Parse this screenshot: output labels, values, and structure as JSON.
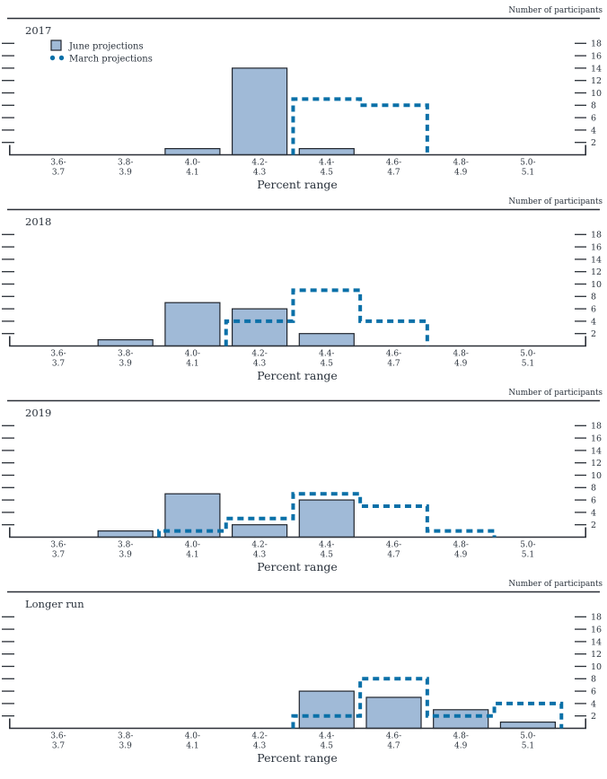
{
  "figure": {
    "y_axis_label": "Number of participants",
    "x_axis_label": "Percent range"
  },
  "legend": {
    "june": "June projections",
    "march": "March projections"
  },
  "colors": {
    "bar_fill": "#a0bad7",
    "bar_stroke": "#21262e",
    "dash": "#0a70a8",
    "text": "#2a323c",
    "axis": "#2a2f37"
  },
  "chart_data": [
    {
      "type": "bar",
      "title": "2017",
      "xlabel": "Percent range",
      "ylabel": "Number of participants",
      "categories": [
        "3.6-3.7",
        "3.8-3.9",
        "4.0-4.1",
        "4.2-4.3",
        "4.4-4.5",
        "4.6-4.7",
        "4.8-4.9",
        "5.0-5.1"
      ],
      "yticks": [
        2,
        4,
        6,
        8,
        10,
        12,
        14,
        16,
        18
      ],
      "ylim": [
        0,
        19.5
      ],
      "grid": false,
      "legend_position": "top-left",
      "series": [
        {
          "name": "June projections",
          "style": "bar",
          "values": [
            0,
            0,
            1,
            14,
            1,
            0,
            0,
            0
          ]
        },
        {
          "name": "March projections",
          "style": "dashed-step",
          "values": [
            0,
            0,
            0,
            0,
            9,
            8,
            0,
            0
          ]
        }
      ]
    },
    {
      "type": "bar",
      "title": "2018",
      "xlabel": "Percent range",
      "ylabel": "Number of participants",
      "categories": [
        "3.6-3.7",
        "3.8-3.9",
        "4.0-4.1",
        "4.2-4.3",
        "4.4-4.5",
        "4.6-4.7",
        "4.8-4.9",
        "5.0-5.1"
      ],
      "yticks": [
        2,
        4,
        6,
        8,
        10,
        12,
        14,
        16,
        18
      ],
      "ylim": [
        0,
        19.5
      ],
      "grid": false,
      "series": [
        {
          "name": "June projections",
          "style": "bar",
          "values": [
            0,
            1,
            7,
            6,
            2,
            0,
            0,
            0
          ]
        },
        {
          "name": "March projections",
          "style": "dashed-step",
          "values": [
            0,
            0,
            0,
            4,
            9,
            4,
            0,
            0
          ]
        }
      ]
    },
    {
      "type": "bar",
      "title": "2019",
      "xlabel": "Percent range",
      "ylabel": "Number of participants",
      "categories": [
        "3.6-3.7",
        "3.8-3.9",
        "4.0-4.1",
        "4.2-4.3",
        "4.4-4.5",
        "4.6-4.7",
        "4.8-4.9",
        "5.0-5.1"
      ],
      "yticks": [
        2,
        4,
        6,
        8,
        10,
        12,
        14,
        16,
        18
      ],
      "ylim": [
        0,
        19.5
      ],
      "grid": false,
      "series": [
        {
          "name": "June projections",
          "style": "bar",
          "values": [
            0,
            1,
            7,
            2,
            6,
            0,
            0,
            0
          ]
        },
        {
          "name": "March projections",
          "style": "dashed-step",
          "values": [
            0,
            0,
            1,
            3,
            7,
            5,
            1,
            0
          ]
        }
      ]
    },
    {
      "type": "bar",
      "title": "Longer run",
      "xlabel": "Percent range",
      "ylabel": "Number of participants",
      "categories": [
        "3.6-3.7",
        "3.8-3.9",
        "4.0-4.1",
        "4.2-4.3",
        "4.4-4.5",
        "4.6-4.7",
        "4.8-4.9",
        "5.0-5.1"
      ],
      "yticks": [
        2,
        4,
        6,
        8,
        10,
        12,
        14,
        16,
        18
      ],
      "ylim": [
        0,
        19.5
      ],
      "grid": false,
      "series": [
        {
          "name": "June projections",
          "style": "bar",
          "values": [
            0,
            0,
            0,
            0,
            6,
            5,
            3,
            1
          ]
        },
        {
          "name": "March projections",
          "style": "dashed-step",
          "values": [
            0,
            0,
            0,
            0,
            2,
            8,
            2,
            4
          ]
        }
      ]
    }
  ]
}
